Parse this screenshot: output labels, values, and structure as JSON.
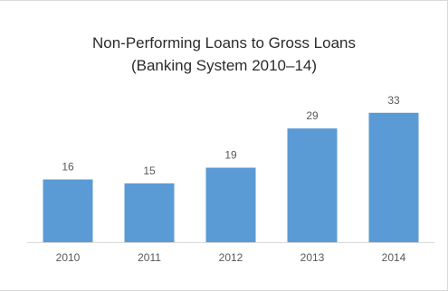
{
  "chart_data": {
    "type": "bar",
    "title": "Non-Performing Loans to Gross Loans",
    "subtitle": "(Banking System 2010–14)",
    "categories": [
      "2010",
      "2011",
      "2012",
      "2013",
      "2014"
    ],
    "values": [
      16,
      15,
      19,
      29,
      33
    ],
    "data_labels": [
      "16",
      "15",
      "19",
      "29",
      "33"
    ],
    "ylim": [
      0,
      36
    ],
    "grid": false,
    "legend": "none",
    "colors": {
      "bar": "#5b9bd5",
      "axis": "#d9d9d9",
      "label_text": "#595959",
      "title_text": "#2b2b2b"
    }
  }
}
